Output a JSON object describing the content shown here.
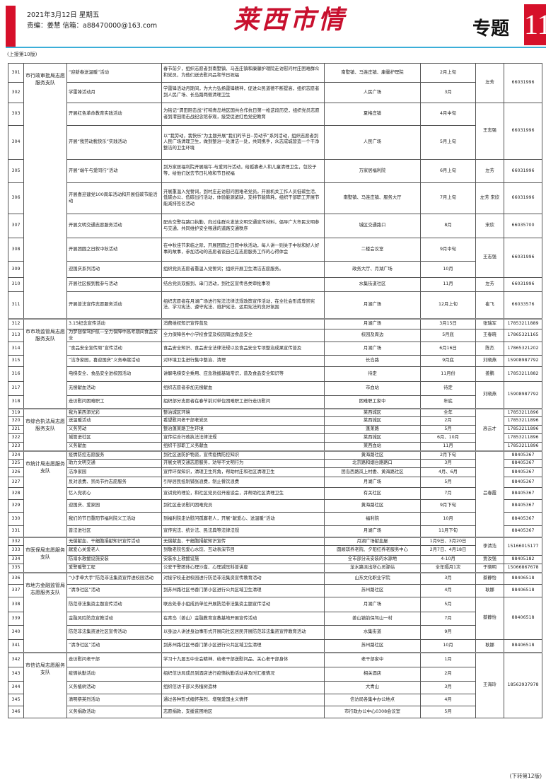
{
  "header": {
    "date": "2021年3月12日  星期五",
    "editor": "责编：姜慧   信箱：a88470000@163.com",
    "logo": "莱西市情",
    "topic": "专题",
    "page_number": "11",
    "continued_from": "(上接第10版)",
    "continued_to": "(下转第12版)"
  },
  "colors": {
    "accent_red": "#d6102a",
    "rule_blue": "#3aaed8"
  },
  "groups": [
    {
      "org": "市行政审批局志愿服务支队",
      "start": 0,
      "span": 11
    },
    {
      "org": "市市场监管局志愿服务支队",
      "start": 11,
      "span": 7
    },
    {
      "org": "市综合执法局志愿服务支队",
      "start": 18,
      "span": 5
    },
    {
      "org": "市统计局志愿服务支队",
      "start": 23,
      "span": 8
    },
    {
      "org": "市医保局志愿服务支队",
      "start": 31,
      "span": 4
    },
    {
      "org": "市地方金融监管局志愿服务支队",
      "start": 35,
      "span": 6
    },
    {
      "org": "市信访局志愿服务支队",
      "start": 41,
      "span": 5
    }
  ],
  "rows": [
    {
      "no": "301",
      "activity": "“迎新春送温暖”活动",
      "content": "春节前夕，组织志愿者到南墅镇、马连庄镇和康馨护理院走访慰问村庄困难群众和党员，为他们送去慰问品和节日祝福",
      "location": "南墅镇、马连庄镇、康馨护理院",
      "time": "2月上旬",
      "contact": {
        "name": "左芳",
        "phone": "66031996",
        "span": 2
      }
    },
    {
      "no": "302",
      "activity": "学雷锋活动月",
      "content": "学雷锋活动月期间，为大力弘扬雷锋精神，促进公民道德不断提高，组织志愿者到人民广场、长岛路两侧清理卫生",
      "location": "人民广场",
      "time": "3月"
    },
    {
      "no": "303",
      "activity": "开展红色革命教育实践活动",
      "content": "为铭记“渭田阻击战”打响青岛地区国共合作抗日第一枪这段历史，组织党员志愿者到渭田阻击战纪念馆参观，接受促进红色党史教育",
      "location": "夏格庄镇",
      "time": "4月中旬",
      "contact": {
        "name": "王志强",
        "phone": "66031996",
        "span": 2
      }
    },
    {
      "no": "304",
      "activity": "开展“我劳动我快乐”实践活动",
      "content": "以“我劳动，我快乐”为主题开展“我们的节日--劳动节”系列活动，组织志愿者到人民广场清理卫生，做到整治一处清洁一处，共同携手，众志成城营造一个干净整洁的卫生环境",
      "location": "人民广场",
      "time": "5月上旬"
    },
    {
      "no": "305",
      "activity": "开展“端午与爱同行”活动",
      "content": "到万家居福利院开展端午-与爱同行活动，给孤寡老人和儿童清理卫生，包饺子等，给他们送去节日礼物和节日祝福",
      "location": "万家居福利院",
      "time": "6月上旬",
      "contact": {
        "name": "左芳",
        "phone": "66031996",
        "span": 1
      }
    },
    {
      "no": "306",
      "activity": "开展喜迎建党100周年活动和开展低碳节能活动",
      "content": "开展重温入党誓词，到村庄走访慰问困难老党员。开展机关工作人员低碳生活、低碳办公、低碳出行活动，体验能源紧缺，支持节能降耗，组织干部职工开展节能减排签名活动",
      "location": "南墅镇、马连庄镇、服务大厅",
      "time": "7月上旬",
      "contact": {
        "name": "左芳 宋欣",
        "phone": "66031996",
        "span": 1
      }
    },
    {
      "no": "307",
      "activity": "开展文明交通志愿服务活动",
      "content": "配合交警在路口执勤，向过往群众发放文明交通宣传材料，倡导广大市民文明参与交通，共同维护安全畅通的道路交通秩序",
      "location": "城区交通路口",
      "time": "8月",
      "contact": {
        "name": "宋欣",
        "phone": "66035700",
        "span": 1
      }
    },
    {
      "no": "308",
      "activity": "开展团圆之日叙中秋活动",
      "content": "在中秋佳节来临之际，开展团圆之日叙中秋活动，每人讲一则关于中秋和好人好事的故事，参加活动的志愿者谈自己在志愿服务工作的心得体会",
      "location": "二楼会议室",
      "time": "9月中旬",
      "contact": {
        "name": "王志强",
        "phone": "66031996",
        "span": 2
      }
    },
    {
      "no": "309",
      "activity": "迎国庆系列活动",
      "content": "组织党员志愿者重温入党誓词；组织开展卫生清洁志愿服务。",
      "location": "政务大厅、月湖广场",
      "time": "10月"
    },
    {
      "no": "310",
      "activity": "开展社区报到我参与活动",
      "content": "结合党员双报到、串门活动，到社区宣传各类审批事项",
      "location": "水集街道社区",
      "time": "11月",
      "contact": {
        "name": "左芳",
        "phone": "66031996",
        "span": 1
      }
    },
    {
      "no": "311",
      "activity": "开展普法宣传志愿服务活动",
      "content": "组织志愿者在月湖广场进行宪法法律法规政策宣传活动，在全社会形成尊崇宪法、学习宪法、遵守宪法、维护宪法、运用宪法的良好氛围",
      "location": "月湖广场",
      "time": "12月上旬",
      "contact": {
        "name": "崔飞",
        "phone": "66033576",
        "span": 1
      }
    },
    {
      "no": "312",
      "activity": "3.15纪念宣传活动",
      "content": "消费维权知识宣传普及",
      "location": "月湖广场",
      "time": "3月15日",
      "contact": {
        "name": "张瑞军",
        "phone": "17853211889",
        "span": 1
      }
    },
    {
      "no": "313",
      "activity": "为梦想保驾护航—全力保障中高考期间食品安全",
      "content": "全力保障各中小学校食堂及校园周边食品安全",
      "location": "校园及周边",
      "time": "5月底",
      "contact": {
        "name": "王春晓",
        "phone": "17865321165",
        "span": 1
      }
    },
    {
      "no": "314",
      "activity": "“食品安全宣传周”宣传活动",
      "content": "食品安全知识、食品安全法律法规以及食品安全专项整治成果宣传普及",
      "location": "月湖广场",
      "time": "6月16日",
      "contact": {
        "name": "陈杰",
        "phone": "17865321202",
        "span": 1
      }
    },
    {
      "no": "315",
      "activity": "“洁净家园，喜迎国庆”义务奉献活动",
      "content": "对环境卫生进行集中整治、清理",
      "location": "长岛路",
      "time": "9月底",
      "contact": {
        "name": "刘晓燕",
        "phone": "15908987792",
        "span": 1
      }
    },
    {
      "no": "316",
      "activity": "电梯安全、食品安全进校园活动",
      "content": "讲解电梯安全乘用、应急救援基础常识，普及食品安全知识等",
      "location": "待定",
      "time": "11月份",
      "contact": {
        "name": "姜鹏",
        "phone": "17853211882",
        "span": 1
      }
    },
    {
      "no": "317",
      "activity": "无偿献血活动",
      "content": "组织志愿者参加无偿献血",
      "location": "市血站",
      "time": "待定",
      "contact": {
        "name": "刘晓燕",
        "phone": "15908987792",
        "span": 2
      }
    },
    {
      "no": "318",
      "activity": "走访慰问困难职工",
      "content": "组织部分志愿者在春节前对单位困难职工进行走访慰问",
      "location": "困难职工家中",
      "time": "年底"
    },
    {
      "no": "319",
      "activity": "我为莱西添光彩",
      "content": "整治城区环境",
      "location": "莱西城区",
      "time": "全年",
      "contact": {
        "name": "高云才",
        "span": 5
      },
      "phone": "17853211896"
    },
    {
      "no": "320",
      "activity": "送温暖活动",
      "content": "看望慰问老干部老党员",
      "location": "莱西城区",
      "time": "2月",
      "phone": "17853211896"
    },
    {
      "no": "321",
      "activity": "义务劳动",
      "content": "整治蓬莱路卫生环境",
      "location": "蓬莱路",
      "time": "5月",
      "phone": "17853211896"
    },
    {
      "no": "322",
      "activity": "城管进社区",
      "content": "宣传综合行政执法法律法规",
      "location": "莱西城区",
      "time": "6月、10月",
      "phone": "17853211896"
    },
    {
      "no": "323",
      "activity": "义务献血",
      "content": "组织干部职工义务献血",
      "location": "莱西血站",
      "time": "11月",
      "phone": "17853211896"
    },
    {
      "no": "324",
      "activity": "疫情防控志愿服务",
      "content": "到社区送防护物资，宣传疫情防控知识",
      "location": "黄海路社区",
      "time": "2月下旬",
      "contact": {
        "name": "吕春霞",
        "span": 8
      },
      "phone": "88405367"
    },
    {
      "no": "325",
      "activity": "助力文明交通",
      "content": "开展文明交通志愿服务，劝导不文明行为",
      "location": "北京路和烟台路路口",
      "time": "3月",
      "phone": "88405367"
    },
    {
      "no": "326",
      "activity": "洁净家园",
      "content": "宣传环保知识，清理卫生死角，帮助村庄和社区清理卫生",
      "location": "团岛西路岚上村委、黄海路社区",
      "time": "4月、6月",
      "phone": "88405367"
    },
    {
      "no": "327",
      "activity": "反对浪费、崇尚节约志愿服务",
      "content": "引导居民抵制铺张浪费，制止餐饮浪费",
      "location": "月湖广场",
      "time": "5月",
      "phone": "88405367"
    },
    {
      "no": "328",
      "activity": "忆入党初心",
      "content": "宣讲党的理论，和社区党员召开座谈会，并帮助社区清理卫生",
      "location": "有关社区",
      "time": "7月",
      "phone": "88405367"
    },
    {
      "no": "329",
      "activity": "迎国庆、爱家园",
      "content": "到社区走访慰问困难党员",
      "location": "黄海路社区",
      "time": "9月下旬",
      "phone": "88405367"
    },
    {
      "no": "330",
      "activity": "我们的节日重阳节福利院义工活动",
      "content": "到福利院走访慰问孤寡老人，开展“献爱心、送温暖”活动",
      "location": "福利院",
      "time": "10月",
      "phone": "88405367"
    },
    {
      "no": "331",
      "activity": "普法进社区",
      "content": "宣传宪法、统计法、民法典等法律法规",
      "location": "月湖广场",
      "time": "11月下旬",
      "phone": "88405367"
    },
    {
      "no": "332",
      "activity": "无偿献血、干细胞捐献知识宣传活动",
      "content": "无偿献血、干细胞捐献知识宣传",
      "location": "月湖广场献血屋",
      "time": "1月9日、3月20日",
      "contact": {
        "name": "李清浩",
        "phone": "15166015177",
        "span": 2
      }
    },
    {
      "no": "333",
      "activity": "献爱心关爱老人",
      "content": "到敬老院包爱心水饺、互动表演节目",
      "location": "圆顺琪养老院、夕阳红养老服务中心",
      "time": "2月7日、4月18日"
    },
    {
      "no": "334",
      "activity": "防溺水救援设施安装",
      "content": "安装水上救援设施",
      "location": "全市部分未安装的水源地",
      "time": "4-10月",
      "contact": {
        "name": "贾汝强",
        "phone": "88405182",
        "span": 1
      }
    },
    {
      "no": "335",
      "activity": "爱警暖警工程",
      "content": "公安干警团体心理沙盘、心理减压科普讲座",
      "location": "龙水路派出所心灵驿站",
      "time": "全年隔月1次",
      "contact": {
        "name": "于晓明",
        "phone": "15066867678",
        "span": 1
      }
    },
    {
      "no": "336",
      "activity": "“小手牵大手”防范非法集资宣传进校园活动",
      "content": "对接学校走进校园进行防范非法集资宣传教育活动",
      "location": "山东文化职业学院",
      "time": "3月",
      "contact": {
        "name": "蔡静怡",
        "phone": "88406518",
        "span": 1
      }
    },
    {
      "no": "337",
      "activity": "“清净社区”活动",
      "content": "到苏州路社区书香门第小区进行公共区域卫生清理",
      "location": "苏州路社区",
      "time": "4月",
      "contact": {
        "name": "耿娜",
        "phone": "88406518",
        "span": 1
      }
    },
    {
      "no": "338",
      "activity": "防范非法集资主题宣传活动",
      "content": "联合处非小组成员单位开展防范非法集资主题宣传活动",
      "location": "月湖广场",
      "time": "5月",
      "contact": {
        "name": "蔡静怡",
        "phone": "88406518",
        "span": 3
      }
    },
    {
      "no": "339",
      "activity": "金融风险防范宣教活动",
      "content": "在青岛（姜山）金融教育宣教基地开展宣传活动",
      "location": "姜山镇前保驾山一村",
      "time": "7月"
    },
    {
      "no": "340",
      "activity": "防范非法集资进社区宣传活动",
      "content": "以身边人讲述身边事形式开展向社区居民开展防范非法集资宣传教育活动",
      "location": "水集街道",
      "time": "9月"
    },
    {
      "no": "341",
      "activity": "“清净社区”活动",
      "content": "到苏州路社区书香门第小区进行公共区域卫生清理",
      "location": "苏州路社区",
      "time": "10月",
      "contact": {
        "name": "耿娜",
        "phone": "88406518",
        "span": 1
      }
    },
    {
      "no": "342",
      "activity": "走访慰问老干部",
      "content": "学习十九届五中全会精神、给老干部送慰问品、关心老干部身体",
      "location": "老干部家中",
      "time": "1月",
      "contact": {
        "name": "王海玲",
        "phone": "18563937978",
        "span": 5
      }
    },
    {
      "no": "343",
      "activity": "疫情执勤活动",
      "content": "组织信访局成员到酒店进行疫情执勤活动并及时汇报情况",
      "location": "相关酒店",
      "time": "2月"
    },
    {
      "no": "344",
      "activity": "义务植树活动",
      "content": "组织信访干部义务植树造林",
      "location": "大青山",
      "time": "3月"
    },
    {
      "no": "345",
      "activity": "清明祭英烈活动",
      "content": "通过各种形式缅怀英烈、增强爱国主义情怀",
      "location": "信访局各集中办公地点",
      "time": "4月"
    },
    {
      "no": "346",
      "activity": "义务捐款活动",
      "content": "志愿捐款，支援贫困地区",
      "location": "市行政办公中心0308会议室",
      "time": "5月"
    }
  ]
}
